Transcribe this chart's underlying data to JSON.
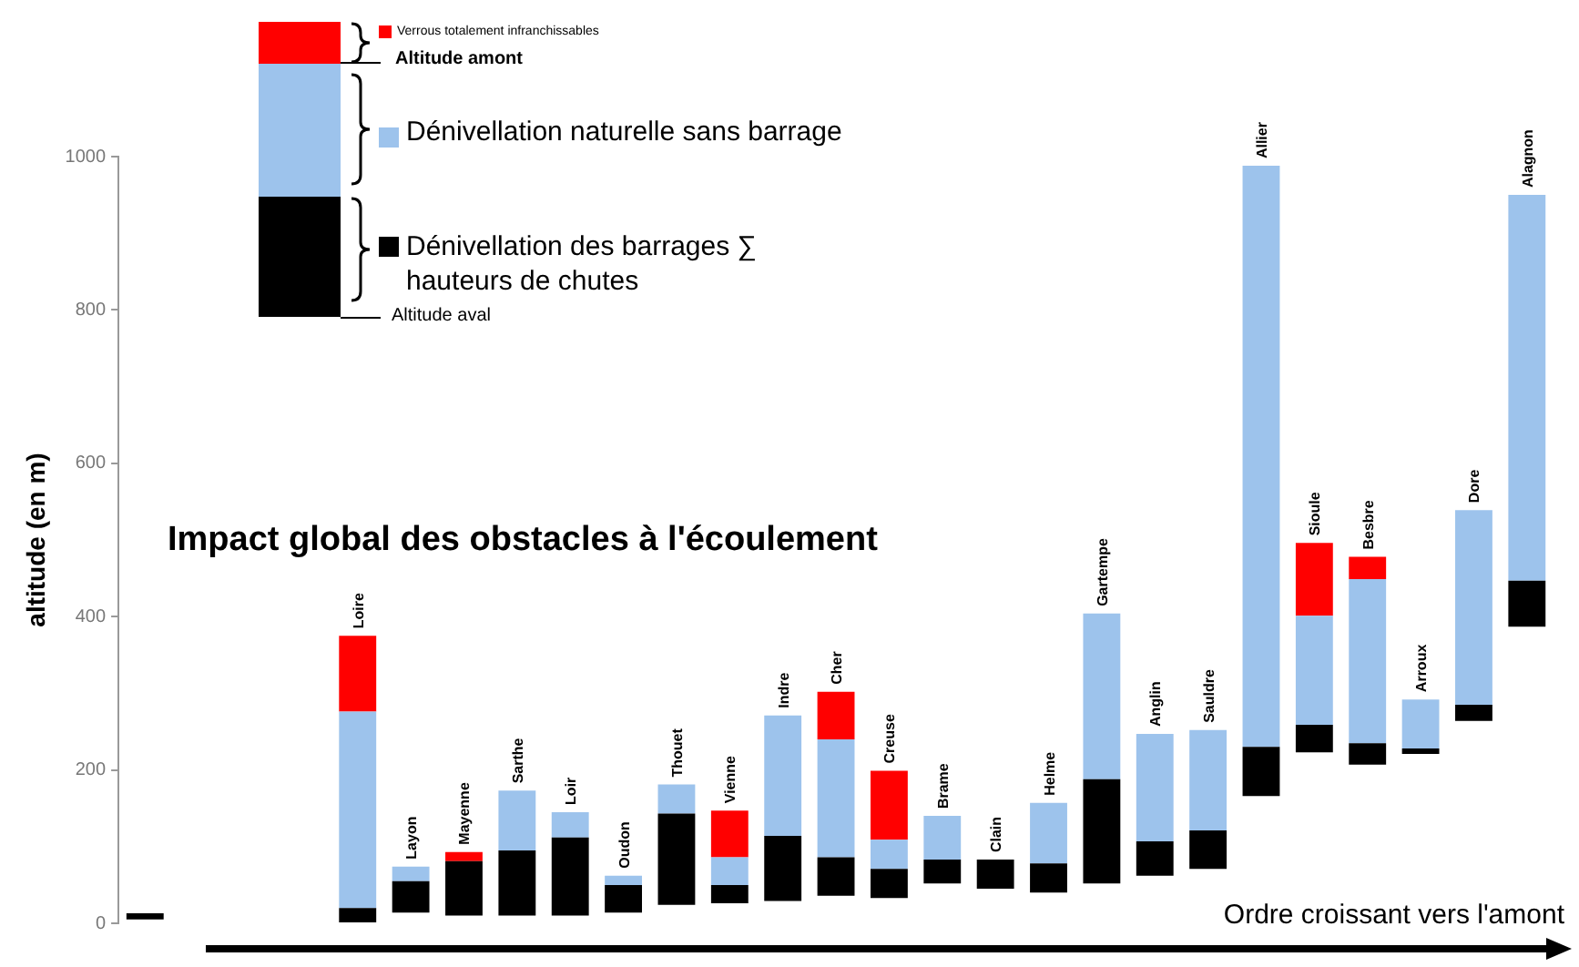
{
  "chart_data": {
    "type": "bar",
    "title": "Impact global des obstacles à l'écoulement",
    "xlabel": "Ordre croissant vers l'amont",
    "ylabel": "altitude (en m)",
    "categories": [
      null,
      null,
      null,
      null,
      "Loire",
      "Layon",
      "Mayenne",
      "Sarthe",
      "Loir",
      "Oudon",
      "Thouet",
      "Vienne",
      "Indre",
      "Cher",
      "Creuse",
      "Brame",
      "Clain",
      "Helme",
      "Gartempe",
      "Anglin",
      "Sauldre",
      "Allier",
      "Sioule",
      "Besbre",
      "Arroux",
      "Dore",
      "Alagnon"
    ],
    "series": [
      {
        "name": "Dénivellation des barrages ∑ hauteurs de chutes",
        "color": "#000000",
        "base": [
          5,
          null,
          null,
          null,
          0,
          14,
          10,
          10,
          10,
          14,
          24,
          26,
          29,
          36,
          33,
          52,
          45,
          40,
          52,
          62,
          71,
          166,
          223,
          207,
          221,
          264,
          387
        ],
        "values": [
          8,
          null,
          null,
          null,
          20,
          41,
          71,
          85,
          102,
          36,
          119,
          24,
          85,
          50,
          38,
          31,
          38,
          38,
          136,
          45,
          50,
          64,
          36,
          28,
          7,
          21,
          60
        ]
      },
      {
        "name": "Dénivellation naturelle sans barrage",
        "color": "#9dc3ec",
        "base": [
          null,
          null,
          null,
          null,
          20,
          55,
          null,
          95,
          112,
          50,
          143,
          50,
          114,
          86,
          71,
          83,
          null,
          78,
          188,
          107,
          121,
          230,
          259,
          235,
          228,
          285,
          447
        ],
        "values": [
          null,
          null,
          null,
          null,
          256,
          19,
          null,
          78,
          33,
          12,
          38,
          36,
          157,
          154,
          38,
          57,
          null,
          79,
          216,
          140,
          131,
          758,
          142,
          214,
          64,
          254,
          503
        ]
      },
      {
        "name": "Verrous totalement infranchissables",
        "color": "#ff0000",
        "base": [
          null,
          null,
          null,
          null,
          276,
          null,
          81,
          null,
          null,
          null,
          null,
          86,
          null,
          240,
          109,
          null,
          null,
          null,
          null,
          null,
          null,
          null,
          401,
          449,
          null,
          null,
          null
        ],
        "values": [
          null,
          null,
          null,
          null,
          99,
          null,
          12,
          null,
          null,
          null,
          null,
          61,
          null,
          62,
          90,
          null,
          null,
          null,
          null,
          null,
          null,
          null,
          95,
          29,
          null,
          null,
          null
        ]
      }
    ],
    "ylim": [
      0,
      1000
    ],
    "yticks": [
      0,
      200,
      400,
      600,
      800,
      1000
    ],
    "legend": "top left",
    "annotations": [
      "Altitude amont",
      "Altitude aval"
    ]
  }
}
